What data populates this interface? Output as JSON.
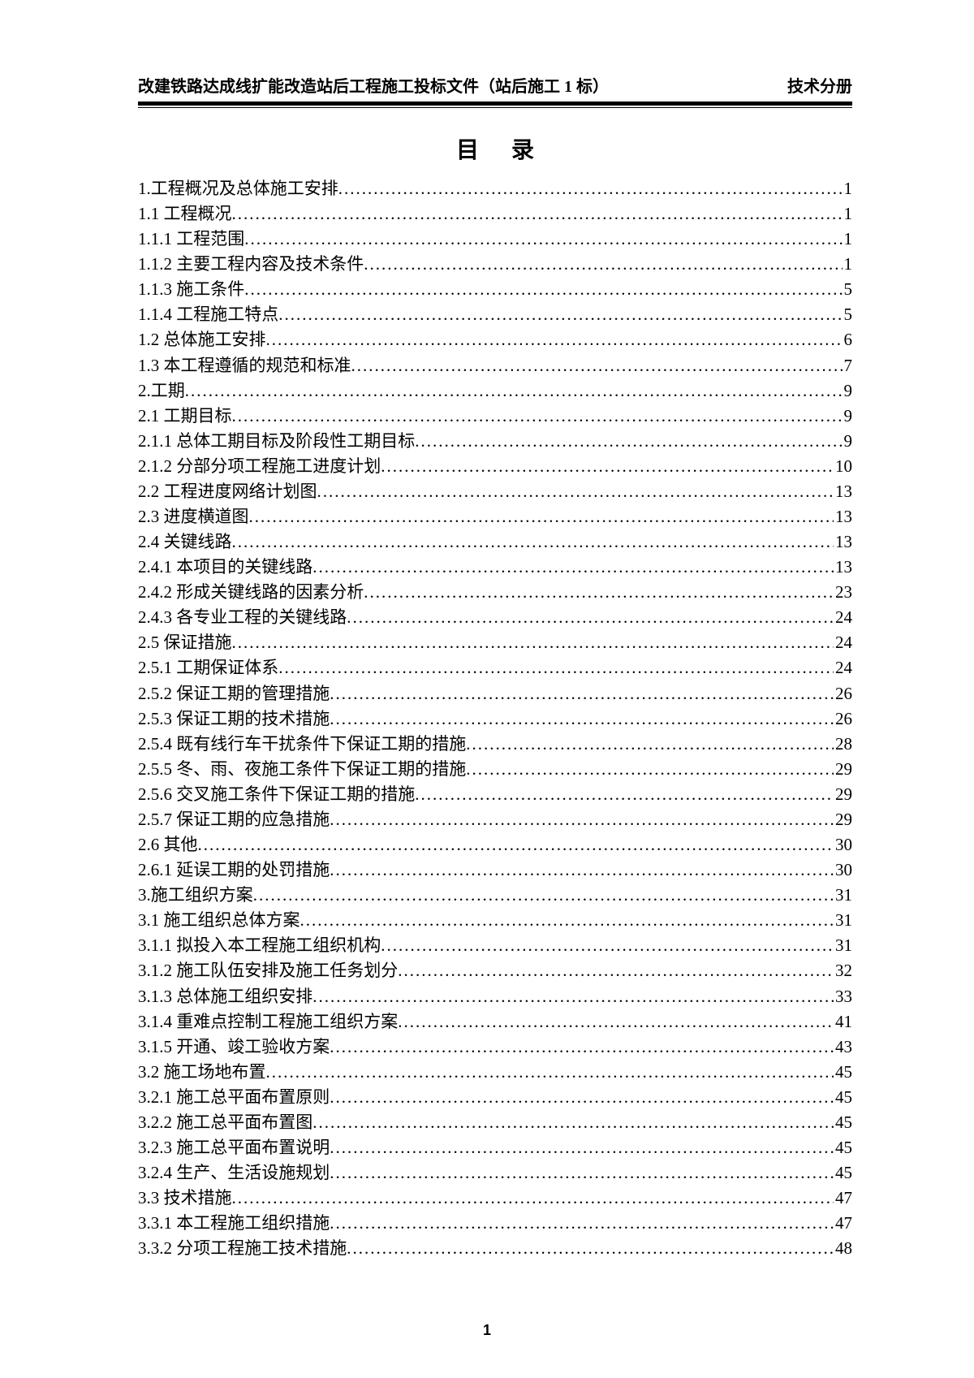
{
  "header": {
    "left": "改建铁路达成线扩能改造站后工程施工投标文件（站后施工 1 标）",
    "right": "技术分册"
  },
  "title": "目录",
  "page_number": "1",
  "toc": [
    {
      "level": 1,
      "num": "1.",
      "text": "工程概况及总体施工安排",
      "page": "1"
    },
    {
      "level": 2,
      "num": "1.1",
      "text": " 工程概况",
      "page": "1"
    },
    {
      "level": 3,
      "num": "1.1.1",
      "text": " 工程范围",
      "page": "1"
    },
    {
      "level": 3,
      "num": "1.1.2",
      "text": " 主要工程内容及技术条件",
      "page": "1"
    },
    {
      "level": 3,
      "num": "1.1.3",
      "text": " 施工条件",
      "page": "5"
    },
    {
      "level": 3,
      "num": "1.1.4",
      "text": " 工程施工特点",
      "page": "5"
    },
    {
      "level": 2,
      "num": "1.2",
      "text": " 总体施工安排",
      "page": "6"
    },
    {
      "level": 2,
      "num": "1.3",
      "text": " 本工程遵循的规范和标准",
      "page": "7"
    },
    {
      "level": 1,
      "num": "2.",
      "text": "工期",
      "page": "9"
    },
    {
      "level": 2,
      "num": "2.1",
      "text": " 工期目标",
      "page": "9"
    },
    {
      "level": 3,
      "num": "2.1.1",
      "text": " 总体工期目标及阶段性工期目标",
      "page": "9"
    },
    {
      "level": 3,
      "num": "2.1.2",
      "text": " 分部分项工程施工进度计划",
      "page": "10"
    },
    {
      "level": 2,
      "num": "2.2",
      "text": " 工程进度网络计划图",
      "page": "13"
    },
    {
      "level": 2,
      "num": "2.3",
      "text": " 进度横道图",
      "page": "13"
    },
    {
      "level": 2,
      "num": "2.4",
      "text": " 关键线路",
      "page": "13"
    },
    {
      "level": 3,
      "num": "2.4.1",
      "text": " 本项目的关键线路",
      "page": "13"
    },
    {
      "level": 3,
      "num": "2.4.2",
      "text": " 形成关键线路的因素分析",
      "page": "23"
    },
    {
      "level": 3,
      "num": "2.4.3",
      "text": " 各专业工程的关键线路",
      "page": "24"
    },
    {
      "level": 2,
      "num": "2.5",
      "text": " 保证措施",
      "page": "24"
    },
    {
      "level": 3,
      "num": "2.5.1",
      "text": " 工期保证体系",
      "page": "24"
    },
    {
      "level": 3,
      "num": "2.5.2",
      "text": " 保证工期的管理措施",
      "page": "26"
    },
    {
      "level": 3,
      "num": "2.5.3",
      "text": " 保证工期的技术措施",
      "page": "26"
    },
    {
      "level": 3,
      "num": "2.5.4",
      "text": " 既有线行车干扰条件下保证工期的措施",
      "page": "28"
    },
    {
      "level": 3,
      "num": "2.5.5",
      "text": " 冬、雨、夜施工条件下保证工期的措施",
      "page": "29"
    },
    {
      "level": 3,
      "num": "2.5.6",
      "text": " 交叉施工条件下保证工期的措施",
      "page": "29"
    },
    {
      "level": 3,
      "num": "2.5.7",
      "text": " 保证工期的应急措施",
      "page": "29"
    },
    {
      "level": 2,
      "num": "2.6",
      "text": " 其他",
      "page": "30"
    },
    {
      "level": 3,
      "num": "2.6.1",
      "text": " 延误工期的处罚措施",
      "page": "30"
    },
    {
      "level": 1,
      "num": "3.",
      "text": "施工组织方案",
      "page": "31"
    },
    {
      "level": 2,
      "num": "3.1",
      "text": " 施工组织总体方案",
      "page": "31"
    },
    {
      "level": 3,
      "num": "3.1.1",
      "text": " 拟投入本工程施工组织机构",
      "page": "31"
    },
    {
      "level": 3,
      "num": "3.1.2",
      "text": " 施工队伍安排及施工任务划分",
      "page": "32"
    },
    {
      "level": 3,
      "num": "3.1.3",
      "text": " 总体施工组织安排",
      "page": "33"
    },
    {
      "level": 3,
      "num": "3.1.4",
      "text": " 重难点控制工程施工组织方案",
      "page": "41"
    },
    {
      "level": 3,
      "num": "3.1.5",
      "text": " 开通、竣工验收方案",
      "page": "43"
    },
    {
      "level": 2,
      "num": "3.2",
      "text": " 施工场地布置",
      "page": "45"
    },
    {
      "level": 3,
      "num": "3.2.1",
      "text": " 施工总平面布置原则",
      "page": "45"
    },
    {
      "level": 3,
      "num": "3.2.2",
      "text": " 施工总平面布置图",
      "page": "45"
    },
    {
      "level": 3,
      "num": "3.2.3",
      "text": " 施工总平面布置说明",
      "page": "45"
    },
    {
      "level": 3,
      "num": "3.2.4",
      "text": " 生产、生活设施规划",
      "page": "45"
    },
    {
      "level": 2,
      "num": "3.3",
      "text": " 技术措施",
      "page": "47"
    },
    {
      "level": 3,
      "num": "3.3.1",
      "text": " 本工程施工组织措施",
      "page": "47"
    },
    {
      "level": 3,
      "num": "3.3.2",
      "text": " 分项工程施工技术措施",
      "page": "48"
    }
  ]
}
